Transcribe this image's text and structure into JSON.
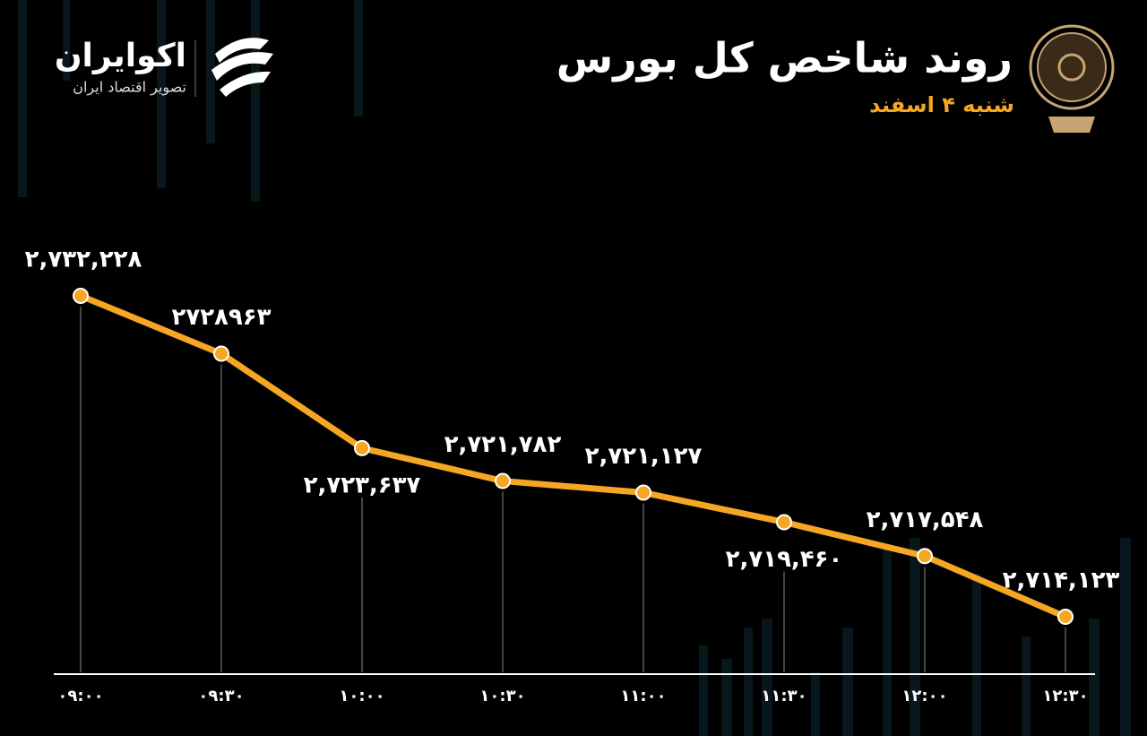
{
  "header": {
    "title": "روند شاخص کل بورس",
    "subtitle": "شنبه ۴ اسفند",
    "brand": "اکوایران",
    "tagline": "تصویر اقتصاد ایران"
  },
  "chart_data": {
    "type": "line",
    "categories": [
      "۰۹:۰۰",
      "۰۹:۳۰",
      "۱۰:۰۰",
      "۱۰:۳۰",
      "۱۱:۰۰",
      "۱۱:۳۰",
      "۱۲:۰۰",
      "۱۲:۳۰"
    ],
    "values": [
      2732228,
      2728963,
      2723637,
      2721782,
      2721127,
      2719460,
      2717548,
      2714123
    ],
    "value_labels": [
      "۲,۷۳۲,۲۲۸",
      "۲۷۲۸۹۶۳",
      "۲,۷۲۳,۶۳۷",
      "۲,۷۲۱,۷۸۲",
      "۲,۷۲۱,۱۲۷",
      "۲,۷۱۹,۴۶۰",
      "۲,۷۱۷,۵۴۸",
      "۲,۷۱۴,۱۲۳"
    ],
    "color": "#f5a623"
  }
}
